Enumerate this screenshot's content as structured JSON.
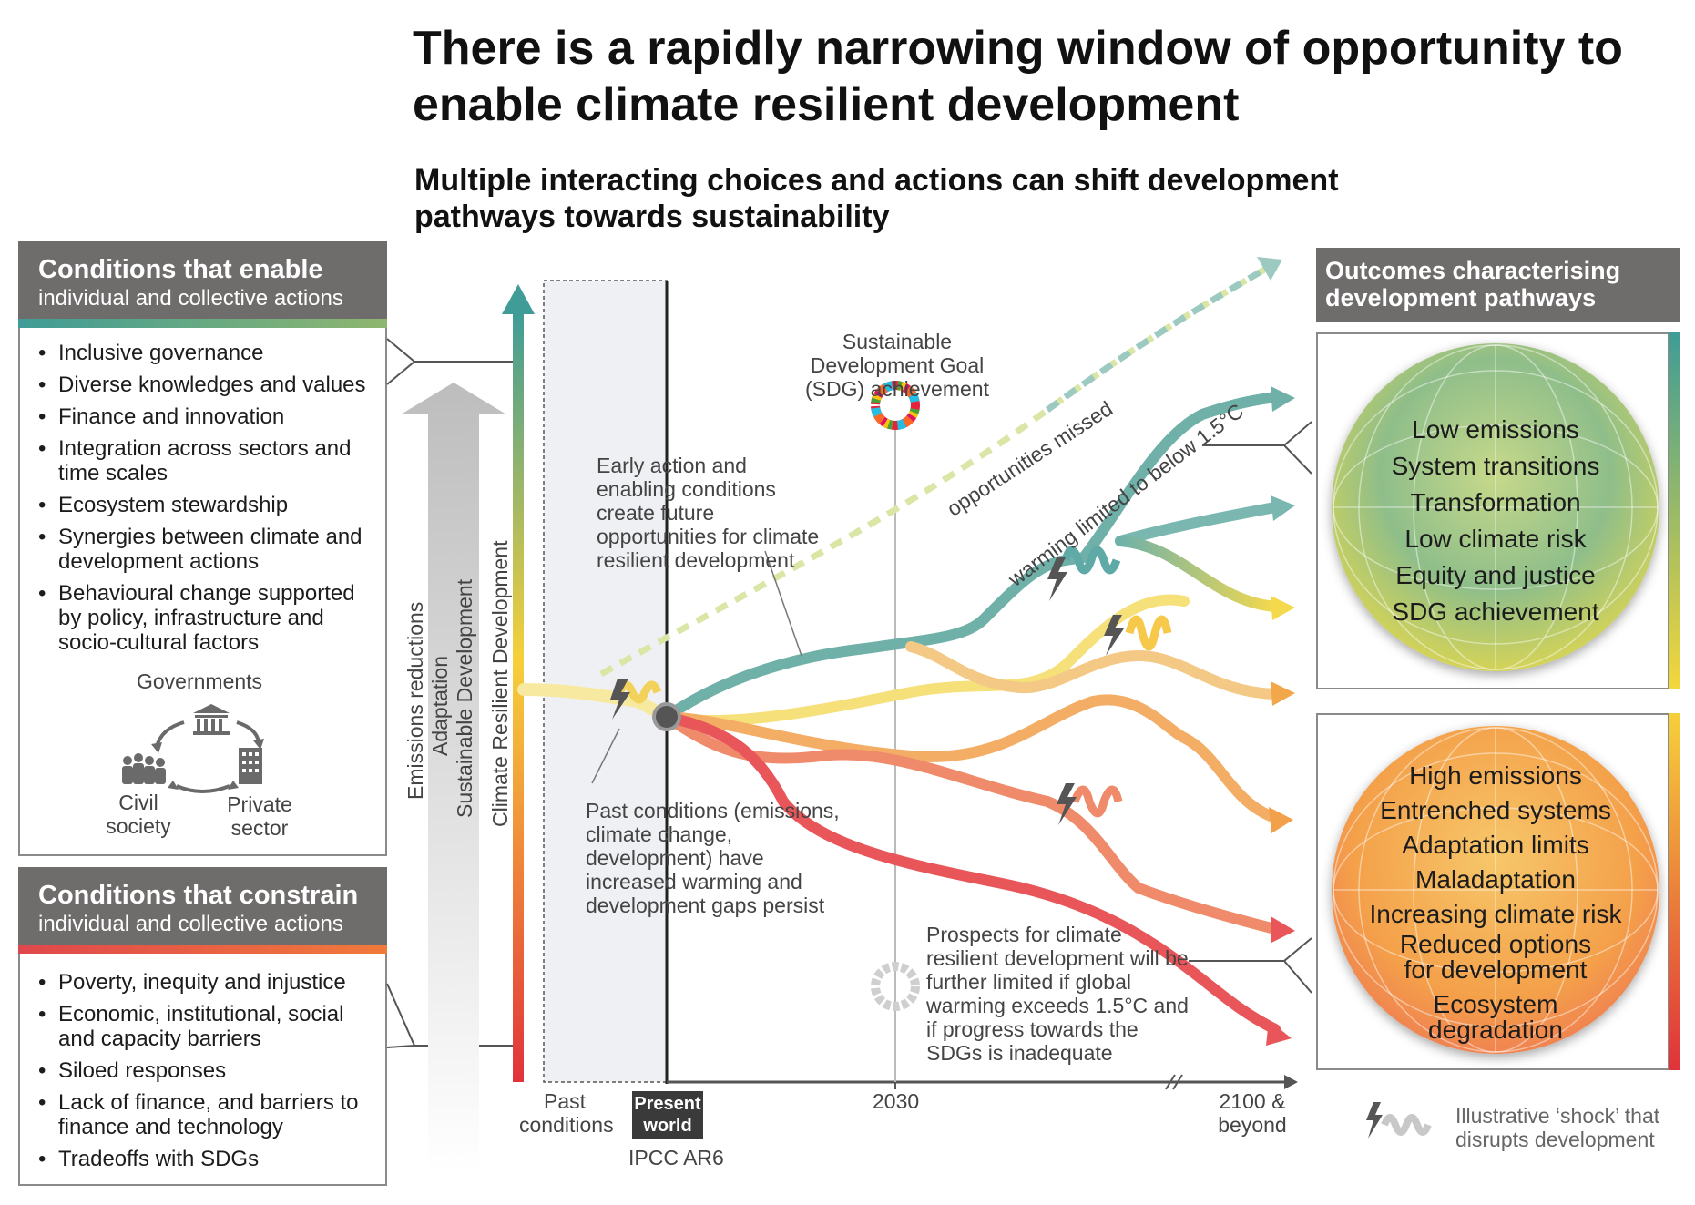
{
  "title": "There is a rapidly narrowing window of opportunity to enable climate resilient development",
  "subtitle": "Multiple interacting choices and actions can shift development pathways towards sustainability",
  "enable": {
    "title": "Conditions that enable",
    "subtitle": "individual and collective actions",
    "items": [
      "Inclusive governance",
      "Diverse knowledges and values",
      "Finance and innovation",
      "Integration across sectors and time scales",
      "Ecosystem stewardship",
      "Synergies between climate and development actions",
      "Behavioural change supported by policy, infrastructure and socio-cultural factors"
    ],
    "actors": {
      "governments": "Governments",
      "civil_society": "Civil society",
      "private_sector": "Private sector"
    }
  },
  "constrain": {
    "title": "Conditions that constrain",
    "subtitle": "individual and collective actions",
    "items": [
      "Poverty, inequity and injustice",
      "Economic, institutional, social and capacity barriers",
      "Siloed responses",
      "Lack of finance, and barriers to finance and technology",
      "Tradeoffs with SDGs"
    ]
  },
  "axis": {
    "vertical_labels": [
      "Emissions reductions",
      "Adaptation",
      "Sustainable Development",
      "Climate Resilient Development"
    ],
    "x_labels": {
      "past": "Past conditions",
      "present": "Present world",
      "ar6": "IPCC AR6",
      "y2030": "2030",
      "y2100": "2100 & beyond"
    }
  },
  "annotations": {
    "sdg": "Sustainable Development Goal (SDG) achievement",
    "early_action": "Early action and enabling conditions create future opportunities for climate resilient development",
    "past_conditions": "Past conditions (emissions, climate change, development) have increased warming and development gaps persist",
    "prospects": "Prospects for climate resilient development will be further limited if global warming exceeds 1.5°C and if progress towards the SDGs is inadequate",
    "opportunities_missed": "opportunities missed",
    "warming_limited": "warming limited to below 1.5°C",
    "shock_legend": "Illustrative ‘shock’ that disrupts development"
  },
  "outcomes": {
    "title": "Outcomes characterising development pathways",
    "positive": [
      "Low emissions",
      "System transitions",
      "Transformation",
      "Low climate risk",
      "Equity and justice",
      "SDG achievement"
    ],
    "negative": [
      "High emissions",
      "Entrenched systems",
      "Adaptation limits",
      "Maladaptation",
      "Increasing climate risk",
      "Reduced options for development",
      "Ecosystem degradation"
    ]
  },
  "colors": {
    "teal": "#5fa9a6",
    "yellow": "#f5d84a",
    "orange": "#f2a04a",
    "red": "#e8565a",
    "header_grey": "#6f6d6c"
  }
}
